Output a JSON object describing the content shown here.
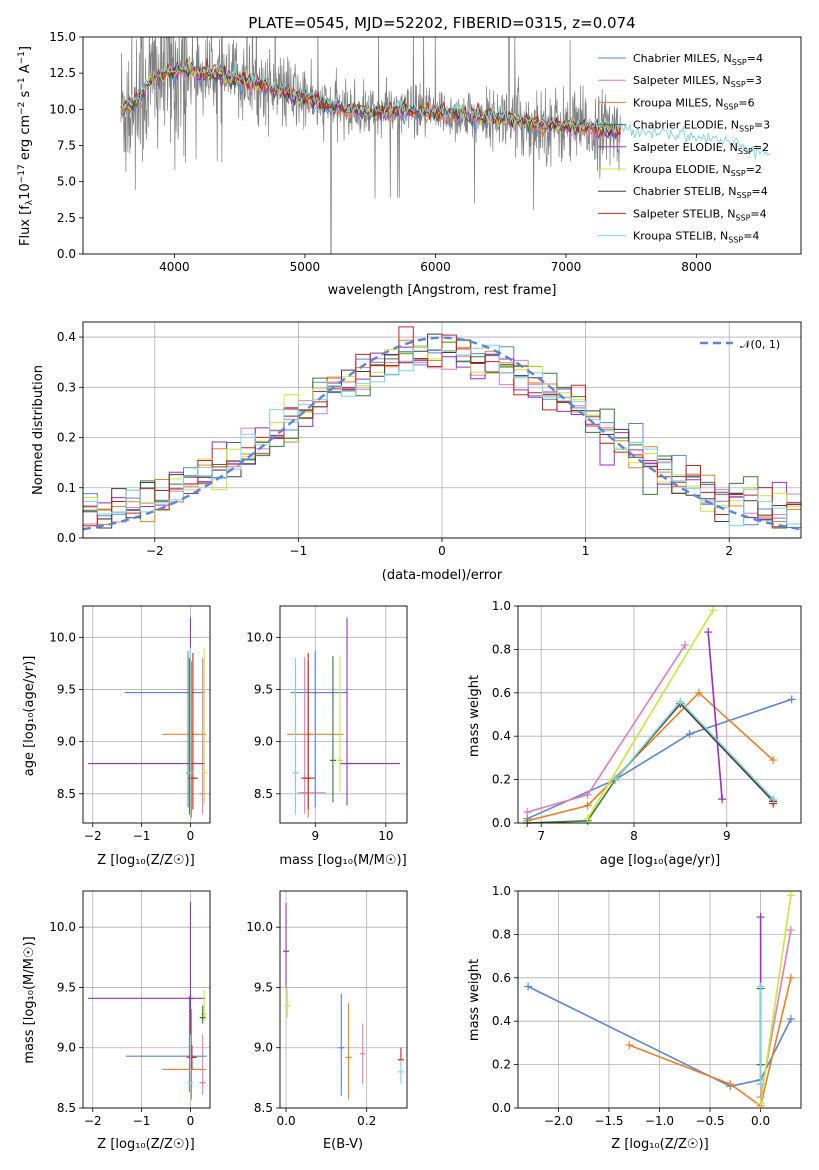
{
  "figure": {
    "title": "PLATE=0545, MJD=52202, FIBERID=0315, z=0.074"
  },
  "chart_data": [
    {
      "id": "spectrum",
      "type": "line",
      "title": "PLATE=0545, MJD=52202, FIBERID=0315, z=0.074",
      "xlabel": "wavelength [Angstrom, rest frame]",
      "ylabel_parts": [
        "Flux [f",
        "λ",
        "10",
        "−17",
        " erg cm",
        "−2",
        " s",
        "−1",
        " A",
        "−1",
        "]"
      ],
      "xlim": [
        3300,
        8800
      ],
      "ylim": [
        0,
        15
      ],
      "xticks": [
        4000,
        5000,
        6000,
        7000,
        8000
      ],
      "xtick_labels": [
        "4000",
        "5000",
        "6000",
        "7000",
        "8000"
      ],
      "yticks": [
        0,
        2.5,
        5,
        7.5,
        10,
        12.5,
        15
      ],
      "ytick_labels": [
        "0.0",
        "2.5",
        "5.0",
        "7.5",
        "10.0",
        "12.5",
        "15.0"
      ],
      "legend_position": "top-right",
      "legend": [
        {
          "label": "Chabrier MILES, N",
          "sub": "SSP",
          "suffix": "=4",
          "color": "#5b84d9"
        },
        {
          "label": "Salpeter MILES, N",
          "sub": "SSP",
          "suffix": "=3",
          "color": "#e27cb6"
        },
        {
          "label": "Kroupa MILES, N",
          "sub": "SSP",
          "suffix": "=6",
          "color": "#e8822a"
        },
        {
          "label": "Chabrier ELODIE, N",
          "sub": "SSP",
          "suffix": "=3",
          "color": "#3a7a3a"
        },
        {
          "label": "Salpeter ELODIE, N",
          "sub": "SSP",
          "suffix": "=2",
          "color": "#9b2fbf"
        },
        {
          "label": "Kroupa ELODIE, N",
          "sub": "SSP",
          "suffix": "=2",
          "color": "#c8e83a"
        },
        {
          "label": "Chabrier STELIB, N",
          "sub": "SSP",
          "suffix": "=4",
          "color": "#4a3a3a"
        },
        {
          "label": "Salpeter STELIB, N",
          "sub": "SSP",
          "suffix": "=4",
          "color": "#c0281e"
        },
        {
          "label": "Kroupa STELIB, N",
          "sub": "SSP",
          "suffix": "=4",
          "color": "#7fd4df"
        }
      ],
      "data_color": "#7f7f7f",
      "continuum_x": [
        3600,
        3700,
        3800,
        3900,
        4000,
        4100,
        4200,
        4300,
        4500,
        4700,
        4900,
        5100,
        5300,
        5500,
        5700,
        5900,
        6100,
        6300,
        6500,
        6700,
        6900,
        7100,
        7300,
        7500,
        7800,
        8200,
        8500
      ],
      "continuum_y": [
        10.0,
        10.4,
        11.8,
        12.4,
        12.6,
        12.8,
        12.4,
        12.5,
        12.0,
        11.6,
        11.0,
        10.4,
        10.0,
        9.8,
        9.9,
        9.8,
        9.7,
        9.5,
        9.4,
        9.1,
        8.9,
        8.7,
        8.6,
        8.4,
        8.2,
        7.6,
        7.0
      ]
    },
    {
      "id": "residuals",
      "type": "line",
      "xlabel": "(data-model)/error",
      "ylabel": "Normed distribution",
      "xlim": [
        -2.5,
        2.5
      ],
      "ylim": [
        0,
        0.43
      ],
      "xticks": [
        -2,
        -1,
        0,
        1,
        2
      ],
      "xtick_labels": [
        "−2",
        "−1",
        "0",
        "1",
        "2"
      ],
      "yticks": [
        0,
        0.1,
        0.2,
        0.3,
        0.4
      ],
      "ytick_labels": [
        "0.0",
        "0.1",
        "0.2",
        "0.3",
        "0.4"
      ],
      "legend_position": "top-right",
      "legend_label": "𝒩(0, 1)",
      "normal_color": "#5b84d9"
    },
    {
      "id": "age-vs-Z",
      "type": "scatter",
      "xlabel": "Z [log₁₀(Z/Z☉)]",
      "ylabel": "age  [log₁₀(age/yr)]",
      "xlim": [
        -2.2,
        0.4
      ],
      "ylim": [
        8.22,
        10.3
      ],
      "xticks": [
        -2,
        -1,
        0
      ],
      "xtick_labels": [
        "−2",
        "−1",
        "0"
      ],
      "yticks": [
        8.5,
        9.0,
        9.5,
        10.0
      ],
      "ytick_labels": [
        "8.5",
        "9.0",
        "9.5",
        "10.0"
      ],
      "points": [
        {
          "x": -0.05,
          "y": 9.47,
          "xerr": [
            1.3,
            0.35
          ],
          "yerr": [
            1.1,
            0.4
          ],
          "color": "#5b84d9"
        },
        {
          "x": 0.02,
          "y": 9.07,
          "xerr": [
            0.6,
            0.3
          ],
          "yerr": [
            0.8,
            0.7
          ],
          "color": "#e8822a"
        },
        {
          "x": 0.25,
          "y": 8.5,
          "xerr": [
            0.05,
            0.05
          ],
          "yerr": [
            0.2,
            1.3
          ],
          "color": "#e27cb6"
        },
        {
          "x": 0.0,
          "y": 8.79,
          "xerr": [
            2.1,
            0.3
          ],
          "yerr": [
            0.4,
            1.4
          ],
          "color": "#9b2fbf"
        },
        {
          "x": 0.28,
          "y": 8.7,
          "xerr": [
            0.02,
            0.02
          ],
          "yerr": [
            0.3,
            1.2
          ],
          "color": "#c8e83a"
        },
        {
          "x": -0.02,
          "y": 8.7,
          "xerr": [
            0.03,
            0.03
          ],
          "yerr": [
            0.4,
            1.1
          ],
          "color": "#3a7a3a"
        },
        {
          "x": 0.05,
          "y": 8.65,
          "xerr": [
            0.1,
            0.1
          ],
          "yerr": [
            0.3,
            1.2
          ],
          "color": "#c0281e"
        },
        {
          "x": 0.0,
          "y": 8.7,
          "xerr": [
            0.03,
            0.03
          ],
          "yerr": [
            0.4,
            1.2
          ],
          "color": "#7fd4df"
        }
      ]
    },
    {
      "id": "age-vs-mass",
      "type": "scatter",
      "xlabel": "mass [log₁₀(M/M☉)]",
      "xlim": [
        8.5,
        10.3
      ],
      "ylim": [
        8.22,
        10.3
      ],
      "xticks": [
        9,
        10
      ],
      "xtick_labels": [
        "9",
        "10"
      ],
      "yticks": [
        8.5,
        9.0,
        9.5,
        10.0
      ],
      "ytick_labels": [
        "8.5",
        "9.0",
        "9.5",
        "10.0"
      ],
      "points": [
        {
          "x": 9.0,
          "y": 9.47,
          "xerr": [
            0.35,
            0.45
          ],
          "yerr": [
            1.1,
            0.4
          ],
          "color": "#5b84d9"
        },
        {
          "x": 8.9,
          "y": 9.07,
          "xerr": [
            0.3,
            0.5
          ],
          "yerr": [
            0.8,
            0.7
          ],
          "color": "#e8822a"
        },
        {
          "x": 8.85,
          "y": 8.51,
          "xerr": [
            0.1,
            0.3
          ],
          "yerr": [
            0.2,
            1.3
          ],
          "color": "#e27cb6"
        },
        {
          "x": 9.45,
          "y": 8.79,
          "xerr": [
            0.1,
            0.75
          ],
          "yerr": [
            0.4,
            1.4
          ],
          "color": "#9b2fbf"
        },
        {
          "x": 9.35,
          "y": 8.82,
          "xerr": [
            0.02,
            0.02
          ],
          "yerr": [
            0.3,
            1.0
          ],
          "color": "#c8e83a"
        },
        {
          "x": 9.25,
          "y": 8.82,
          "xerr": [
            0.03,
            0.03
          ],
          "yerr": [
            0.4,
            1.0
          ],
          "color": "#3a7a3a"
        },
        {
          "x": 8.9,
          "y": 8.65,
          "xerr": [
            0.1,
            0.1
          ],
          "yerr": [
            0.3,
            1.2
          ],
          "color": "#c0281e"
        },
        {
          "x": 8.72,
          "y": 8.7,
          "xerr": [
            0.02,
            0.05
          ],
          "yerr": [
            0.4,
            1.1
          ],
          "color": "#7fd4df"
        }
      ]
    },
    {
      "id": "weight-vs-age",
      "type": "line",
      "xlabel": "age  [log₁₀(age/yr)]",
      "ylabel": "mass weight",
      "xlim": [
        6.75,
        9.8
      ],
      "ylim": [
        0,
        1.0
      ],
      "xticks": [
        7,
        8,
        9
      ],
      "xtick_labels": [
        "7",
        "8",
        "9"
      ],
      "yticks": [
        0,
        0.2,
        0.4,
        0.6,
        0.8,
        1.0
      ],
      "ytick_labels": [
        "0.0",
        "0.2",
        "0.4",
        "0.6",
        "0.8",
        "1.0"
      ],
      "series": [
        {
          "color": "#5b84d9",
          "x": [
            6.85,
            7.8,
            8.6,
            9.7
          ],
          "y": [
            0.02,
            0.2,
            0.41,
            0.57
          ]
        },
        {
          "color": "#e27cb6",
          "x": [
            6.85,
            7.5,
            8.55
          ],
          "y": [
            0.05,
            0.13,
            0.82
          ]
        },
        {
          "color": "#e8822a",
          "x": [
            6.85,
            7.5,
            8.7,
            9.5
          ],
          "y": [
            0.01,
            0.08,
            0.6,
            0.29
          ]
        },
        {
          "color": "#3a7a3a",
          "x": [
            6.85,
            7.5,
            7.8,
            8.5,
            9.5
          ],
          "y": [
            0.0,
            0.01,
            0.2,
            0.55,
            0.1
          ]
        },
        {
          "color": "#9b2fbf",
          "x": [
            8.8,
            8.95
          ],
          "y": [
            0.88,
            0.11
          ]
        },
        {
          "color": "#c8e83a",
          "x": [
            7.5,
            8.85
          ],
          "y": [
            0.02,
            0.98
          ]
        },
        {
          "color": "#4a3a3a",
          "x": [
            7.8,
            8.5,
            9.5
          ],
          "y": [
            0.2,
            0.55,
            0.1
          ]
        },
        {
          "color": "#c0281e",
          "x": [
            9.5
          ],
          "y": [
            0.09
          ]
        },
        {
          "color": "#7fd4df",
          "x": [
            7.8,
            8.5,
            9.5
          ],
          "y": [
            0.2,
            0.56,
            0.11
          ]
        }
      ]
    },
    {
      "id": "mass-vs-Z",
      "type": "scatter",
      "xlabel": "Z [log₁₀(Z/Z☉)]",
      "ylabel": "mass [log₁₀(M/M☉)]",
      "xlim": [
        -2.2,
        0.4
      ],
      "ylim": [
        8.5,
        10.3
      ],
      "xticks": [
        -2,
        -1,
        0
      ],
      "xtick_labels": [
        "−2",
        "−1",
        "0"
      ],
      "yticks": [
        8.5,
        9.0,
        9.5,
        10.0
      ],
      "ytick_labels": [
        "8.5",
        "9.0",
        "9.5",
        "10.0"
      ],
      "points": [
        {
          "x": -0.02,
          "y": 8.93,
          "xerr": [
            1.3,
            0.35
          ],
          "yerr": [
            0.3,
            0.5
          ],
          "color": "#5b84d9"
        },
        {
          "x": 0.02,
          "y": 8.82,
          "xerr": [
            0.6,
            0.3
          ],
          "yerr": [
            0.25,
            0.5
          ],
          "color": "#e8822a"
        },
        {
          "x": 0.25,
          "y": 8.71,
          "xerr": [
            0.05,
            0.05
          ],
          "yerr": [
            0.1,
            0.4
          ],
          "color": "#e27cb6"
        },
        {
          "x": 0.0,
          "y": 9.41,
          "xerr": [
            2.1,
            0.3
          ],
          "yerr": [
            0.5,
            0.8
          ],
          "color": "#9b2fbf"
        },
        {
          "x": 0.28,
          "y": 9.28,
          "xerr": [
            0.02,
            0.02
          ],
          "yerr": [
            0.05,
            0.2
          ],
          "color": "#c8e83a"
        },
        {
          "x": 0.25,
          "y": 9.25,
          "xerr": [
            0.03,
            0.03
          ],
          "yerr": [
            0.05,
            0.1
          ],
          "color": "#3a7a3a"
        },
        {
          "x": 0.03,
          "y": 8.92,
          "xerr": [
            0.1,
            0.1
          ],
          "yerr": [
            0.1,
            0.1
          ],
          "color": "#c0281e"
        },
        {
          "x": 0.0,
          "y": 8.71,
          "xerr": [
            0.03,
            0.03
          ],
          "yerr": [
            0.1,
            0.4
          ],
          "color": "#7fd4df"
        }
      ]
    },
    {
      "id": "mass-vs-ebv",
      "type": "scatter",
      "xlabel": "E(B-V)",
      "xlim": [
        -0.015,
        0.3
      ],
      "ylim": [
        8.5,
        10.3
      ],
      "xticks": [
        0,
        0.2
      ],
      "xtick_labels": [
        "0.0",
        "0.2"
      ],
      "yticks": [
        8.5,
        9.0,
        9.5,
        10.0
      ],
      "ytick_labels": [
        "8.5",
        "9.0",
        "9.5",
        "10.0"
      ],
      "points": [
        {
          "x": 0.137,
          "y": 9.0,
          "xerr": [
            0,
            0
          ],
          "yerr": [
            0.4,
            0.45
          ],
          "color": "#5b84d9"
        },
        {
          "x": 0.155,
          "y": 8.92,
          "xerr": [
            0,
            0
          ],
          "yerr": [
            0.35,
            0.45
          ],
          "color": "#e8822a"
        },
        {
          "x": 0.19,
          "y": 8.95,
          "xerr": [
            0,
            0
          ],
          "yerr": [
            0.25,
            0.25
          ],
          "color": "#e27cb6"
        },
        {
          "x": 0.0,
          "y": 9.8,
          "xerr": [
            0,
            0
          ],
          "yerr": [
            0.3,
            0.4
          ],
          "color": "#9b2fbf"
        },
        {
          "x": 0.003,
          "y": 9.35,
          "xerr": [
            0,
            0
          ],
          "yerr": [
            0.1,
            0.15
          ],
          "color": "#c8e83a"
        },
        {
          "x": 0.285,
          "y": 8.9,
          "xerr": [
            0,
            0
          ],
          "yerr": [
            0.05,
            0.1
          ],
          "color": "#c0281e"
        },
        {
          "x": 0.285,
          "y": 8.8,
          "xerr": [
            0,
            0
          ],
          "yerr": [
            0.1,
            0.1
          ],
          "color": "#7fd4df"
        }
      ]
    },
    {
      "id": "weight-vs-Z",
      "type": "line",
      "xlabel": "Z [log₁₀(Z/Z☉)]",
      "ylabel": "mass weight",
      "xlim": [
        -2.4,
        0.4
      ],
      "ylim": [
        0,
        1.0
      ],
      "xticks": [
        -2.0,
        -1.5,
        -1.0,
        -0.5,
        0.0
      ],
      "xtick_labels": [
        "−2.0",
        "−1.5",
        "−1.0",
        "−0.5",
        "0.0"
      ],
      "yticks": [
        0,
        0.2,
        0.4,
        0.6,
        0.8,
        1.0
      ],
      "ytick_labels": [
        "0.0",
        "0.2",
        "0.4",
        "0.6",
        "0.8",
        "1.0"
      ],
      "series": [
        {
          "color": "#5b84d9",
          "x": [
            -2.3,
            -0.3,
            0.0,
            0.3
          ],
          "y": [
            0.56,
            0.1,
            0.13,
            0.41
          ]
        },
        {
          "color": "#e8822a",
          "x": [
            -1.3,
            -0.3,
            0.0,
            0.3
          ],
          "y": [
            0.29,
            0.11,
            0.01,
            0.6
          ]
        },
        {
          "color": "#e27cb6",
          "x": [
            0.0,
            0.3
          ],
          "y": [
            0.05,
            0.82
          ]
        },
        {
          "color": "#9b2fbf",
          "x": [
            0.0,
            0.0
          ],
          "y": [
            0.88,
            0.11
          ]
        },
        {
          "color": "#c8e83a",
          "x": [
            0.0,
            0.3
          ],
          "y": [
            0.02,
            0.98
          ]
        },
        {
          "color": "#3a7a3a",
          "x": [
            0.0,
            0.0
          ],
          "y": [
            0.2,
            0.55
          ]
        },
        {
          "color": "#7fd4df",
          "x": [
            0.0,
            0.0
          ],
          "y": [
            0.11,
            0.56
          ]
        }
      ]
    }
  ]
}
